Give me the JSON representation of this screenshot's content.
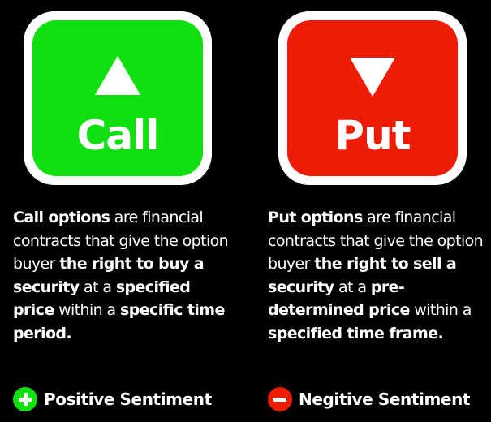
{
  "colors": {
    "background": "#000000",
    "call_green": "#10e010",
    "put_red": "#ee1c06",
    "text": "#ffffff"
  },
  "call": {
    "tile_label": "Call",
    "arrow_icon": "up-triangle-icon",
    "description": {
      "segments": [
        {
          "text": "Call options",
          "bold": true
        },
        {
          "text": " are financial contracts that give the option buyer ",
          "bold": false
        },
        {
          "text": "the right to buy a security",
          "bold": true
        },
        {
          "text": " at a ",
          "bold": false
        },
        {
          "text": "specified price",
          "bold": true
        },
        {
          "text": " within a ",
          "bold": false
        },
        {
          "text": "specific time period.",
          "bold": true
        }
      ]
    },
    "sentiment": {
      "icon": "plus-circle-icon",
      "label": "Positive Sentiment"
    }
  },
  "put": {
    "tile_label": "Put",
    "arrow_icon": "down-triangle-icon",
    "description": {
      "segments": [
        {
          "text": "Put options",
          "bold": true
        },
        {
          "text": " are financial contracts that give the option buyer ",
          "bold": false
        },
        {
          "text": "the right to sell a security",
          "bold": true
        },
        {
          "text": " at a ",
          "bold": false
        },
        {
          "text": "pre-determined price",
          "bold": true
        },
        {
          "text": " within a ",
          "bold": false
        },
        {
          "text": "specified time frame.",
          "bold": true
        }
      ]
    },
    "sentiment": {
      "icon": "minus-circle-icon",
      "label": "Negitive Sentiment"
    }
  }
}
